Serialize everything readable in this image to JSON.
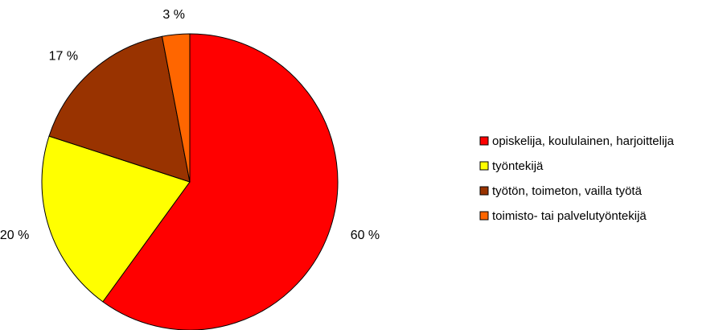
{
  "chart_data": {
    "type": "pie",
    "slices": [
      {
        "label": "opiskelija, koululainen, harjoittelija",
        "value": 60,
        "display": "60 %",
        "color": "#FF0000"
      },
      {
        "label": "työntekijä",
        "value": 20,
        "display": "20 %",
        "color": "#FFFF00"
      },
      {
        "label": "työtön, toimeton, vailla työtä",
        "value": 17,
        "display": "17 %",
        "color": "#993300"
      },
      {
        "label": "toimisto- tai palvelutyöntekijä",
        "value": 3,
        "display": "3 %",
        "color": "#FF6600"
      }
    ],
    "start_angle": "12 o'clock",
    "direction": "clockwise",
    "legend_position": "right"
  }
}
